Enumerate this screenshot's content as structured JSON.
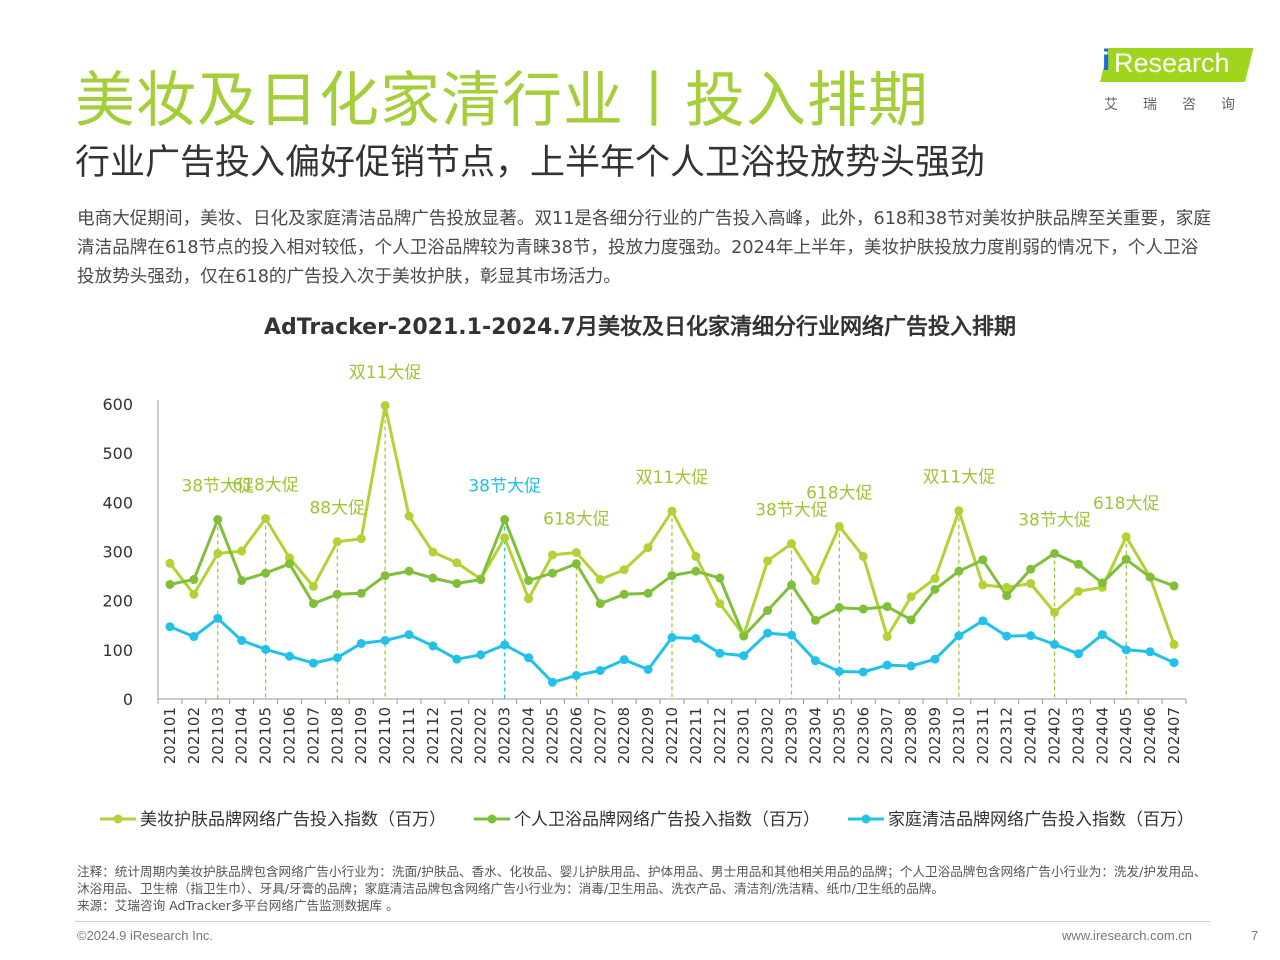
{
  "header": {
    "title": "美妆及日化家清行业丨投入排期",
    "subtitle": "行业广告投入偏好促销节点，上半年个人卫浴投放势头强劲",
    "intro": "电商大促期间，美妆、日化及家庭清洁品牌广告投放显著。双11是各细分行业的广告投入高峰，此外，618和38节对美妆护肤品牌至关重要，家庭清洁品牌在618节点的投入相对较低，个人卫浴品牌较为青睐38节，投放力度强劲。2024年上半年，美妆护肤投放力度削弱的情况下，个人卫浴投放势头强劲，仅在618的广告投入次于美妆护肤，彰显其市场活力。"
  },
  "logo": {
    "brand_text": "Research",
    "brand_letter": "i",
    "cn_text": "艾瑞咨询",
    "brand_color": "#9fd51c",
    "letter_color": "#1b6bd6"
  },
  "chart_data": {
    "type": "line",
    "title": "AdTracker-2021.1-2024.7月美妆及日化家清细分行业网络广告投入排期",
    "xlabel": "",
    "ylabel": "",
    "ylim": [
      0,
      600
    ],
    "yticks": [
      0,
      100,
      200,
      300,
      400,
      500,
      600
    ],
    "grid": false,
    "legend_position": "bottom",
    "categories": [
      "202101",
      "202102",
      "202103",
      "202104",
      "202105",
      "202106",
      "202107",
      "202108",
      "202109",
      "202110",
      "202111",
      "202112",
      "202201",
      "202202",
      "202203",
      "202204",
      "202205",
      "202206",
      "202207",
      "202208",
      "202209",
      "202210",
      "202211",
      "202212",
      "202301",
      "202302",
      "202303",
      "202304",
      "202305",
      "202306",
      "202307",
      "202308",
      "202309",
      "202310",
      "202311",
      "202312",
      "202401",
      "202402",
      "202403",
      "202404",
      "202405",
      "202406",
      "202407"
    ],
    "series": [
      {
        "name": "美妆护肤品牌网络广告投入指数（百万）",
        "color": "#b2d235",
        "values": [
          276,
          213,
          296,
          301,
          367,
          287,
          229,
          320,
          326,
          597,
          372,
          299,
          277,
          244,
          328,
          204,
          293,
          298,
          243,
          263,
          308,
          382,
          290,
          194,
          130,
          281,
          316,
          241,
          351,
          290,
          127,
          208,
          245,
          383,
          232,
          227,
          235,
          176,
          219,
          227,
          330,
          248,
          111
        ]
      },
      {
        "name": "个人卫浴品牌网络广告投入指数（百万）",
        "color": "#7fbf3a",
        "values": [
          233,
          243,
          365,
          241,
          256,
          275,
          194,
          213,
          215,
          251,
          260,
          246,
          235,
          243,
          365,
          241,
          256,
          275,
          194,
          213,
          215,
          251,
          260,
          246,
          128,
          180,
          232,
          160,
          186,
          183,
          188,
          161,
          223,
          260,
          283,
          210,
          264,
          296,
          274,
          236,
          284,
          248,
          230
        ]
      },
      {
        "name": "家庭清洁品牌网络广告投入指数（百万）",
        "color": "#22c1e8",
        "values": [
          147,
          127,
          164,
          119,
          101,
          87,
          73,
          84,
          113,
          119,
          131,
          108,
          81,
          90,
          110,
          84,
          34,
          48,
          58,
          80,
          60,
          125,
          123,
          93,
          88,
          134,
          130,
          78,
          56,
          55,
          69,
          67,
          81,
          129,
          159,
          128,
          129,
          111,
          92,
          131,
          100,
          96,
          74
        ]
      }
    ],
    "annotations": [
      {
        "text": "38节大促",
        "x": "202103",
        "y": 365,
        "color": "#9cc635"
      },
      {
        "text": "618大促",
        "x": "202105",
        "y": 367,
        "color": "#9cc635"
      },
      {
        "text": "88大促",
        "x": "202108",
        "y": 320,
        "color": "#9cc635"
      },
      {
        "text": "双11大促",
        "x": "202110",
        "y": 597,
        "color": "#9cc635"
      },
      {
        "text": "38节大促",
        "x": "202203",
        "y": 365,
        "color": "#22c1e8"
      },
      {
        "text": "618大促",
        "x": "202206",
        "y": 298,
        "color": "#9cc635"
      },
      {
        "text": "双11大促",
        "x": "202210",
        "y": 382,
        "color": "#9cc635"
      },
      {
        "text": "38节大促",
        "x": "202303",
        "y": 316,
        "color": "#9cc635"
      },
      {
        "text": "618大促",
        "x": "202305",
        "y": 351,
        "color": "#9cc635"
      },
      {
        "text": "双11大促",
        "x": "202310",
        "y": 383,
        "color": "#9cc635"
      },
      {
        "text": "38节大促",
        "x": "202402",
        "y": 296,
        "color": "#9cc635"
      },
      {
        "text": "618大促",
        "x": "202405",
        "y": 330,
        "color": "#9cc635"
      }
    ]
  },
  "footer": {
    "note": "注释：统计周期内美妆护肤品牌包含网络广告小行业为：洗面/护肤品、香水、化妆品、婴儿护肤用品、护体用品、男士用品和其他相关用品的品牌；个人卫浴品牌包含网络广告小行业为：洗发/护发用品、沐浴用品、卫生棉（指卫生巾）、牙具/牙膏的品牌；家庭清洁品牌包含网络广告小行业为：消毒/卫生用品、洗衣产品、清洁剂/洗洁精、纸巾/卫生纸的品牌。",
    "source": "来源：艾瑞咨询 AdTracker多平台网络广告监测数据库 。",
    "copyright": "©2024.9 iResearch Inc.",
    "website": "www.iresearch.com.cn",
    "page_number": "7"
  }
}
